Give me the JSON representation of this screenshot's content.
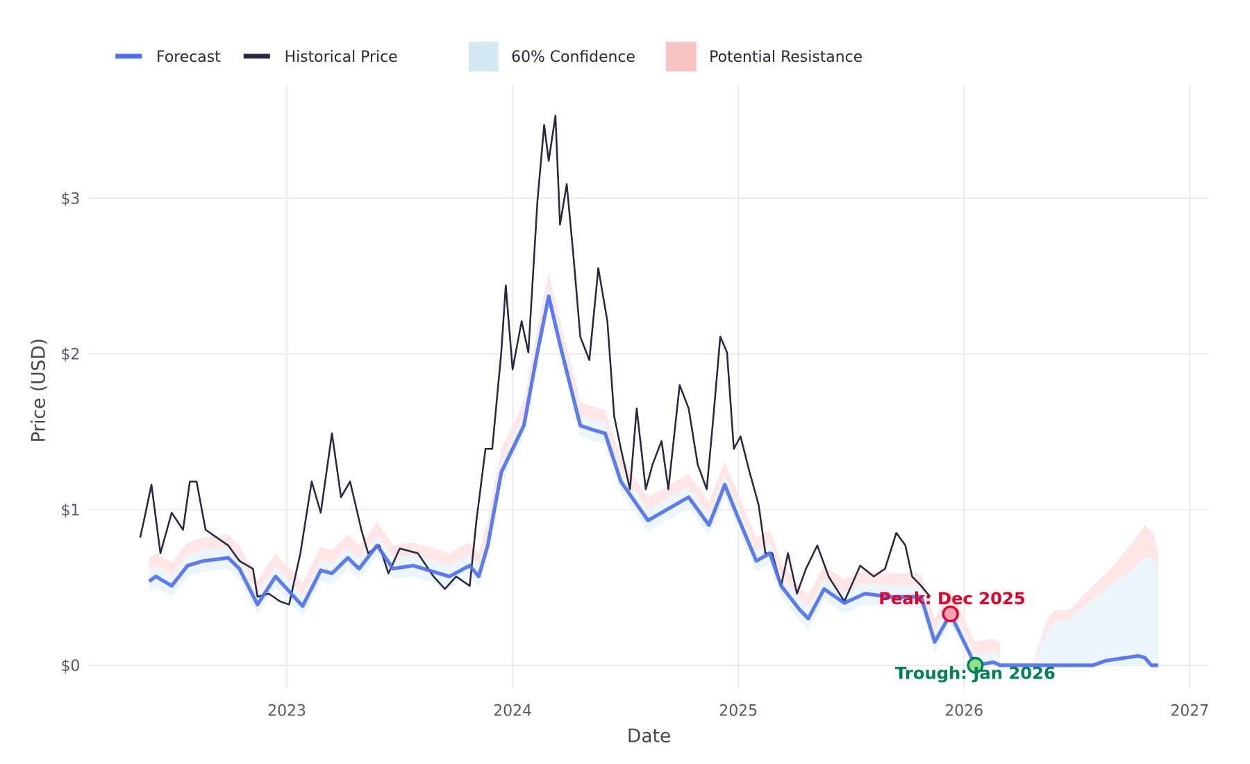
{
  "chart_data": {
    "type": "line",
    "title": "",
    "xlabel": "Date",
    "ylabel": "Price (USD)",
    "xlim": [
      2022.15,
      2027.1
    ],
    "ylim": [
      -0.15,
      3.7
    ],
    "x_ticks": [
      2023,
      2024,
      2025,
      2026,
      2027
    ],
    "x_tick_labels": [
      "2023",
      "2024",
      "2025",
      "2026",
      "2027"
    ],
    "y_ticks": [
      0,
      1,
      2,
      3
    ],
    "y_tick_labels": [
      "$0",
      "$1",
      "$2",
      "$3"
    ],
    "grid": true,
    "legend_position": "top-left",
    "legend": [
      {
        "label": "Forecast",
        "kind": "line",
        "color": "#4f6ff0"
      },
      {
        "label": "Historical Price",
        "kind": "line",
        "color": "#262940"
      },
      {
        "label": "60% Confidence",
        "kind": "area",
        "color": "#d3e9f1"
      },
      {
        "label": "Potential Resistance",
        "kind": "area",
        "color": "#f8c3c0"
      }
    ],
    "series": [
      {
        "name": "Historical Price",
        "color": "#262940",
        "points": [
          [
            2022.35,
            0.82
          ],
          [
            2022.37,
            0.95
          ],
          [
            2022.4,
            1.16
          ],
          [
            2022.44,
            0.72
          ],
          [
            2022.49,
            0.98
          ],
          [
            2022.54,
            0.87
          ],
          [
            2022.57,
            1.18
          ],
          [
            2022.6,
            1.18
          ],
          [
            2022.64,
            0.87
          ],
          [
            2022.69,
            0.82
          ],
          [
            2022.74,
            0.77
          ],
          [
            2022.79,
            0.67
          ],
          [
            2022.85,
            0.62
          ],
          [
            2022.87,
            0.44
          ],
          [
            2022.92,
            0.46
          ],
          [
            2022.97,
            0.41
          ],
          [
            2023.01,
            0.39
          ],
          [
            2023.06,
            0.72
          ],
          [
            2023.11,
            1.18
          ],
          [
            2023.15,
            0.98
          ],
          [
            2023.2,
            1.49
          ],
          [
            2023.24,
            1.08
          ],
          [
            2023.28,
            1.18
          ],
          [
            2023.33,
            0.87
          ],
          [
            2023.36,
            0.72
          ],
          [
            2023.41,
            0.77
          ],
          [
            2023.45,
            0.59
          ],
          [
            2023.5,
            0.75
          ],
          [
            2023.58,
            0.72
          ],
          [
            2023.65,
            0.57
          ],
          [
            2023.7,
            0.49
          ],
          [
            2023.75,
            0.57
          ],
          [
            2023.81,
            0.51
          ],
          [
            2023.84,
            0.93
          ],
          [
            2023.88,
            1.39
          ],
          [
            2023.91,
            1.39
          ],
          [
            2023.95,
            2.01
          ],
          [
            2023.97,
            2.44
          ],
          [
            2024.0,
            1.9
          ],
          [
            2024.04,
            2.21
          ],
          [
            2024.07,
            2.01
          ],
          [
            2024.11,
            2.98
          ],
          [
            2024.14,
            3.47
          ],
          [
            2024.16,
            3.24
          ],
          [
            2024.19,
            3.53
          ],
          [
            2024.21,
            2.83
          ],
          [
            2024.24,
            3.09
          ],
          [
            2024.27,
            2.62
          ],
          [
            2024.3,
            2.11
          ],
          [
            2024.34,
            1.96
          ],
          [
            2024.38,
            2.55
          ],
          [
            2024.42,
            2.21
          ],
          [
            2024.45,
            1.6
          ],
          [
            2024.48,
            1.39
          ],
          [
            2024.52,
            1.13
          ],
          [
            2024.55,
            1.65
          ],
          [
            2024.59,
            1.13
          ],
          [
            2024.62,
            1.29
          ],
          [
            2024.66,
            1.44
          ],
          [
            2024.69,
            1.13
          ],
          [
            2024.74,
            1.8
          ],
          [
            2024.78,
            1.65
          ],
          [
            2024.82,
            1.29
          ],
          [
            2024.86,
            1.13
          ],
          [
            2024.89,
            1.6
          ],
          [
            2024.92,
            2.11
          ],
          [
            2024.95,
            2.01
          ],
          [
            2024.98,
            1.39
          ],
          [
            2025.01,
            1.47
          ],
          [
            2025.05,
            1.24
          ],
          [
            2025.09,
            1.03
          ],
          [
            2025.12,
            0.72
          ],
          [
            2025.15,
            0.72
          ],
          [
            2025.19,
            0.51
          ],
          [
            2025.22,
            0.72
          ],
          [
            2025.26,
            0.46
          ],
          [
            2025.3,
            0.62
          ],
          [
            2025.35,
            0.77
          ],
          [
            2025.4,
            0.57
          ],
          [
            2025.47,
            0.41
          ],
          [
            2025.54,
            0.64
          ],
          [
            2025.6,
            0.57
          ],
          [
            2025.65,
            0.62
          ],
          [
            2025.7,
            0.85
          ],
          [
            2025.74,
            0.77
          ],
          [
            2025.77,
            0.57
          ],
          [
            2025.81,
            0.51
          ],
          [
            2025.85,
            0.44
          ]
        ]
      },
      {
        "name": "Forecast",
        "color": "#4f6ff0",
        "points": [
          [
            2022.39,
            0.54
          ],
          [
            2022.42,
            0.57
          ],
          [
            2022.49,
            0.51
          ],
          [
            2022.56,
            0.64
          ],
          [
            2022.63,
            0.67
          ],
          [
            2022.74,
            0.69
          ],
          [
            2022.79,
            0.62
          ],
          [
            2022.87,
            0.39
          ],
          [
            2022.95,
            0.57
          ],
          [
            2023.07,
            0.38
          ],
          [
            2023.15,
            0.61
          ],
          [
            2023.2,
            0.59
          ],
          [
            2023.27,
            0.69
          ],
          [
            2023.32,
            0.62
          ],
          [
            2023.4,
            0.77
          ],
          [
            2023.47,
            0.62
          ],
          [
            2023.56,
            0.64
          ],
          [
            2023.72,
            0.57
          ],
          [
            2023.81,
            0.64
          ],
          [
            2023.85,
            0.57
          ],
          [
            2023.89,
            0.77
          ],
          [
            2023.95,
            1.24
          ],
          [
            2024.05,
            1.54
          ],
          [
            2024.11,
            2.01
          ],
          [
            2024.16,
            2.37
          ],
          [
            2024.21,
            2.06
          ],
          [
            2024.3,
            1.54
          ],
          [
            2024.36,
            1.51
          ],
          [
            2024.41,
            1.49
          ],
          [
            2024.48,
            1.18
          ],
          [
            2024.6,
            0.93
          ],
          [
            2024.78,
            1.08
          ],
          [
            2024.87,
            0.9
          ],
          [
            2024.94,
            1.16
          ],
          [
            2024.99,
            0.98
          ],
          [
            2025.08,
            0.67
          ],
          [
            2025.14,
            0.72
          ],
          [
            2025.19,
            0.51
          ],
          [
            2025.27,
            0.36
          ],
          [
            2025.31,
            0.3
          ],
          [
            2025.38,
            0.49
          ],
          [
            2025.47,
            0.4
          ],
          [
            2025.56,
            0.46
          ],
          [
            2025.67,
            0.44
          ],
          [
            2025.81,
            0.44
          ],
          [
            2025.87,
            0.15
          ],
          [
            2025.94,
            0.33
          ],
          [
            2026.05,
            0.0
          ],
          [
            2026.13,
            0.02
          ],
          [
            2026.16,
            0.0
          ],
          [
            2026.57,
            0.0
          ],
          [
            2026.63,
            0.03
          ],
          [
            2026.77,
            0.06
          ],
          [
            2026.8,
            0.05
          ],
          [
            2026.83,
            0.0
          ],
          [
            2026.86,
            0.0
          ]
        ]
      }
    ],
    "bands": {
      "confidence_halfwidth": 0.07,
      "resistance_offset": [
        0.07,
        0.15
      ],
      "tail_start": 2026.3,
      "tail": [
        [
          2026.3,
          0.0,
          0.0
        ],
        [
          2026.37,
          0.22,
          0.3
        ],
        [
          2026.4,
          0.28,
          0.35
        ],
        [
          2026.47,
          0.3,
          0.36
        ],
        [
          2026.55,
          0.4,
          0.48
        ],
        [
          2026.65,
          0.52,
          0.62
        ],
        [
          2026.75,
          0.62,
          0.8
        ],
        [
          2026.8,
          0.7,
          0.9
        ],
        [
          2026.84,
          0.68,
          0.85
        ],
        [
          2026.86,
          0.6,
          0.72
        ]
      ]
    },
    "annotations": [
      {
        "label": "Peak: Dec 2025",
        "x": 2025.94,
        "y": 0.33,
        "color": "#e0002a",
        "fill": "#f5a3b3"
      },
      {
        "label": "Trough: Jan 2026",
        "x": 2026.05,
        "y": 0.0,
        "color": "#00805a",
        "fill": "#8fe08a"
      }
    ]
  }
}
